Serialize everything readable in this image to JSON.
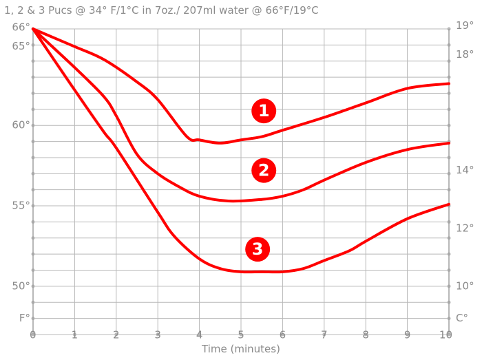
{
  "chart_data": {
    "type": "line",
    "title": "1, 2 & 3 Pucs @ 34° F/1°C in 7oz./ 207ml water @ 66°F/19°C",
    "xlabel": "Time (minutes)",
    "xlim": [
      0,
      10
    ],
    "xticks": [
      "0",
      "1",
      "2",
      "3",
      "4",
      "5",
      "6",
      "7",
      "8",
      "9",
      "10"
    ],
    "ylim_f": [
      47,
      66
    ],
    "left_axis_unit": "F°",
    "right_axis_unit": "C°",
    "yticks_left": [
      {
        "value": 66,
        "label": "66°"
      },
      {
        "value": 65,
        "label": "65°"
      },
      {
        "value": 60,
        "label": "60°"
      },
      {
        "value": 55,
        "label": "55°"
      },
      {
        "value": 50,
        "label": "50°"
      }
    ],
    "yticks_right": [
      {
        "value": 66.2,
        "label": "19°"
      },
      {
        "value": 64.4,
        "label": "18°"
      },
      {
        "value": 57.2,
        "label": "14°"
      },
      {
        "value": 53.6,
        "label": "12°"
      },
      {
        "value": 50.0,
        "label": "10°"
      }
    ],
    "grid": true,
    "line_color": "#ff0000",
    "series": [
      {
        "marker": "1",
        "x": [
          0,
          1,
          1.7,
          2.5,
          3,
          3.7,
          4,
          4.5,
          5,
          5.5,
          6,
          7,
          8,
          9,
          10
        ],
        "y": [
          66,
          64.9,
          64.1,
          62.7,
          61.6,
          59.3,
          59.1,
          58.9,
          59.1,
          59.3,
          59.7,
          60.5,
          61.4,
          62.3,
          62.6
        ]
      },
      {
        "marker": "2",
        "x": [
          0,
          1,
          1.7,
          2,
          2.5,
          3,
          3.5,
          4,
          4.7,
          5.5,
          6,
          6.5,
          7,
          8,
          9,
          10
        ],
        "y": [
          66,
          63.6,
          61.8,
          60.6,
          58.2,
          57.0,
          56.2,
          55.6,
          55.3,
          55.4,
          55.6,
          56.0,
          56.6,
          57.7,
          58.5,
          58.9
        ]
      },
      {
        "marker": "3",
        "x": [
          0,
          1,
          1.7,
          2,
          3,
          3.4,
          4,
          4.5,
          5,
          5.5,
          6,
          6.5,
          7,
          7.6,
          8,
          9,
          10
        ],
        "y": [
          66,
          62.2,
          59.6,
          58.6,
          54.6,
          53.1,
          51.7,
          51.1,
          50.9,
          50.9,
          50.9,
          51.1,
          51.6,
          52.2,
          52.8,
          54.2,
          55.1
        ]
      }
    ]
  }
}
